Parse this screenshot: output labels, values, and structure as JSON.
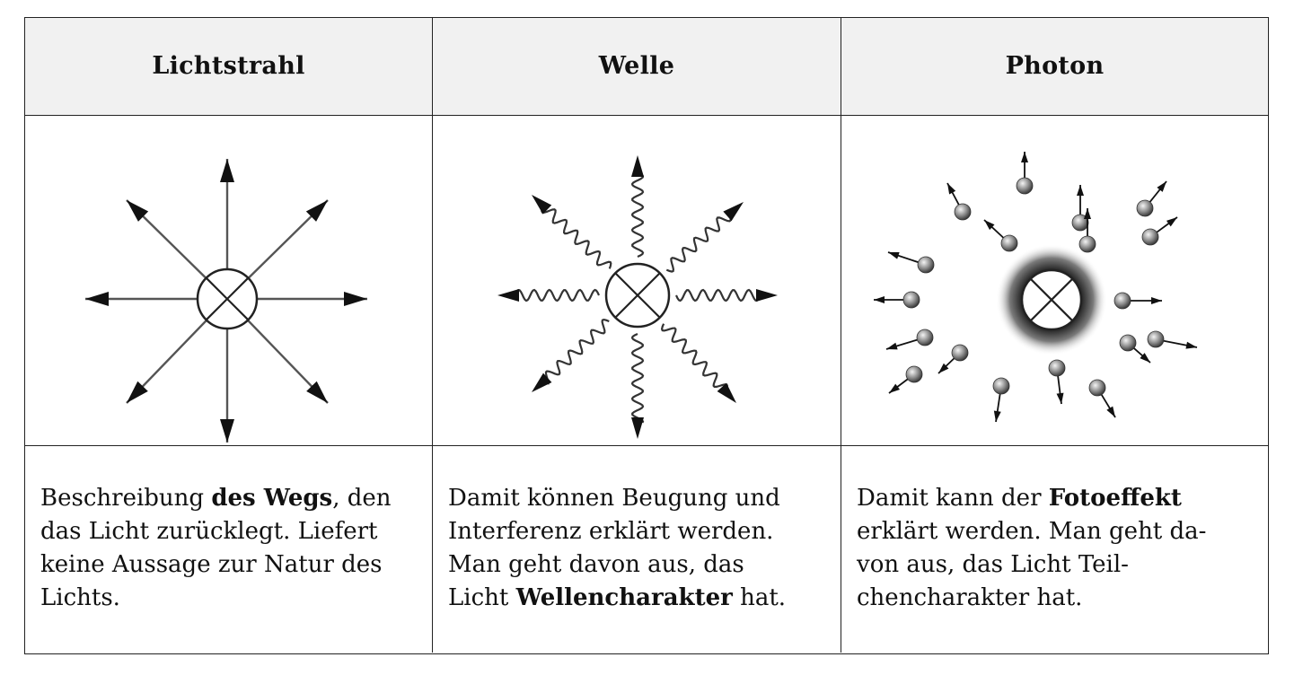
{
  "table": {
    "headers": [
      "Lichtstrahl",
      "Welle",
      "Photon"
    ],
    "descriptions": [
      {
        "lines": [
          [
            {
              "t": "Beschreibung "
            },
            {
              "t": "des Wegs",
              "b": true
            },
            {
              "t": ", den"
            }
          ],
          [
            {
              "t": "das Licht zurücklegt. Liefert"
            }
          ],
          [
            {
              "t": "keine Aussage zur Natur des"
            }
          ],
          [
            {
              "t": "Lichts."
            }
          ]
        ]
      },
      {
        "lines": [
          [
            {
              "t": "Damit können Beugung und"
            }
          ],
          [
            {
              "t": "Interferenz erklärt werden."
            }
          ],
          [
            {
              "t": "Man geht davon aus, das"
            }
          ],
          [
            {
              "t": "Licht "
            },
            {
              "t": "Wellencharakter",
              "b": true
            },
            {
              "t": " hat."
            }
          ]
        ]
      },
      {
        "lines": [
          [
            {
              "t": "Damit kann der "
            },
            {
              "t": "Fotoeffekt",
              "b": true
            }
          ],
          [
            {
              "t": "erklärt werden. Man geht da-"
            }
          ],
          [
            {
              "t": "von aus, das Licht Teil-"
            }
          ],
          [
            {
              "t": "chencharakter hat."
            }
          ]
        ]
      }
    ]
  },
  "colors": {
    "line": "#222222",
    "arrow": "#111111",
    "header_bg": "#f1f1f1"
  }
}
